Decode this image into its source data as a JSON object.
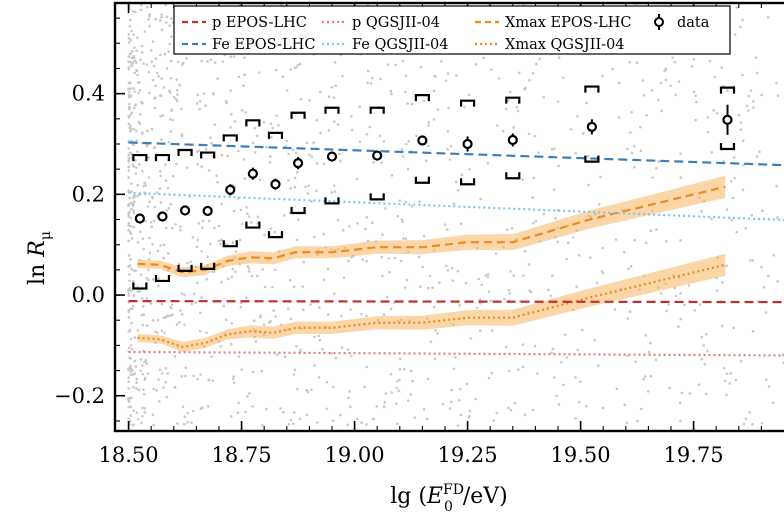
{
  "chart_data": {
    "type": "scatter",
    "xlabel": "lg (E0FD/eV)",
    "ylabel": "ln Rμ",
    "xlim": [
      18.47,
      19.95
    ],
    "ylim": [
      -0.27,
      0.58
    ],
    "x_ticks": [
      18.5,
      18.75,
      19.0,
      19.25,
      19.5,
      19.75
    ],
    "x_tick_labels": [
      "18.50",
      "18.75",
      "19.00",
      "19.25",
      "19.50",
      "19.75"
    ],
    "y_ticks": [
      -0.2,
      0.0,
      0.2,
      0.4
    ],
    "y_tick_labels": [
      "−0.2",
      "0.0",
      "0.2",
      "0.4"
    ],
    "grid": false,
    "legend_position": "top",
    "colors": {
      "p_epos": "#c0302b",
      "fe_epos": "#3f7fb5",
      "p_qgsj": "#e87c7c",
      "fe_qgsj": "#7ec8e8",
      "xmax": "#f08a1a",
      "xmax_band": "#f5b560",
      "data": "#000000",
      "background_points": "#c8c8c8"
    },
    "legend": [
      {
        "key": "p_epos",
        "label": "p EPOS-LHC",
        "style": "dashed",
        "color": "#c0302b"
      },
      {
        "key": "p_qgsj",
        "label": "p QGSJII-04",
        "style": "dotted",
        "color": "#e87c7c"
      },
      {
        "key": "xmax_epos",
        "label": "Xmax EPOS-LHC",
        "style": "dashed",
        "color": "#f08a1a"
      },
      {
        "key": "data",
        "label": "data",
        "style": "marker",
        "color": "#000000"
      },
      {
        "key": "fe_epos",
        "label": "Fe EPOS-LHC",
        "style": "dashed",
        "color": "#3f7fb5"
      },
      {
        "key": "fe_qgsj",
        "label": "Fe QGSJII-04",
        "style": "dotted",
        "color": "#7ec8e8"
      },
      {
        "key": "xmax_qgsj",
        "label": "Xmax QGSJII-04",
        "style": "dotted",
        "color": "#f08a1a"
      }
    ],
    "lines": {
      "p_epos": {
        "x": [
          18.5,
          19.95
        ],
        "y": [
          -0.012,
          -0.014
        ]
      },
      "fe_epos": {
        "x": [
          18.5,
          19.95
        ],
        "y": [
          0.303,
          0.258
        ]
      },
      "p_qgsj": {
        "x": [
          18.5,
          19.95
        ],
        "y": [
          -0.113,
          -0.12
        ]
      },
      "fe_qgsj": {
        "x": [
          18.5,
          19.95
        ],
        "y": [
          0.203,
          0.149
        ]
      }
    },
    "xmax_epos": {
      "x": [
        18.52,
        18.57,
        18.62,
        18.67,
        18.72,
        18.77,
        18.82,
        18.87,
        18.95,
        19.05,
        19.15,
        19.25,
        19.35,
        19.52,
        19.82
      ],
      "y": [
        0.062,
        0.06,
        0.045,
        0.05,
        0.068,
        0.075,
        0.073,
        0.085,
        0.085,
        0.095,
        0.095,
        0.105,
        0.105,
        0.15,
        0.215
      ],
      "err": [
        0.008,
        0.008,
        0.01,
        0.01,
        0.01,
        0.012,
        0.012,
        0.012,
        0.012,
        0.013,
        0.014,
        0.015,
        0.016,
        0.018,
        0.022
      ]
    },
    "xmax_qgsj": {
      "x": [
        18.52,
        18.57,
        18.62,
        18.67,
        18.72,
        18.77,
        18.82,
        18.87,
        18.95,
        19.05,
        19.15,
        19.25,
        19.35,
        19.52,
        19.82
      ],
      "y": [
        -0.085,
        -0.088,
        -0.103,
        -0.095,
        -0.078,
        -0.072,
        -0.075,
        -0.065,
        -0.065,
        -0.055,
        -0.055,
        -0.045,
        -0.045,
        -0.005,
        0.06
      ],
      "err": [
        0.008,
        0.008,
        0.01,
        0.01,
        0.01,
        0.012,
        0.012,
        0.012,
        0.012,
        0.013,
        0.014,
        0.015,
        0.016,
        0.018,
        0.022
      ]
    },
    "data_points": {
      "x": [
        18.525,
        18.575,
        18.625,
        18.675,
        18.725,
        18.775,
        18.825,
        18.875,
        18.95,
        19.05,
        19.15,
        19.25,
        19.35,
        19.525,
        19.825
      ],
      "y": [
        0.152,
        0.156,
        0.168,
        0.167,
        0.209,
        0.241,
        0.22,
        0.262,
        0.275,
        0.277,
        0.307,
        0.3,
        0.308,
        0.334,
        0.348
      ],
      "err": [
        0.008,
        0.01,
        0.01,
        0.01,
        0.011,
        0.012,
        0.011,
        0.012,
        0.01,
        0.01,
        0.01,
        0.015,
        0.013,
        0.015,
        0.03
      ],
      "sys_hi": [
        0.278,
        0.278,
        0.288,
        0.283,
        0.317,
        0.347,
        0.322,
        0.362,
        0.372,
        0.372,
        0.397,
        0.386,
        0.392,
        0.414,
        0.412
      ],
      "sys_lo": [
        0.013,
        0.028,
        0.048,
        0.052,
        0.097,
        0.134,
        0.115,
        0.163,
        0.182,
        0.19,
        0.223,
        0.22,
        0.232,
        0.265,
        0.29
      ]
    }
  }
}
